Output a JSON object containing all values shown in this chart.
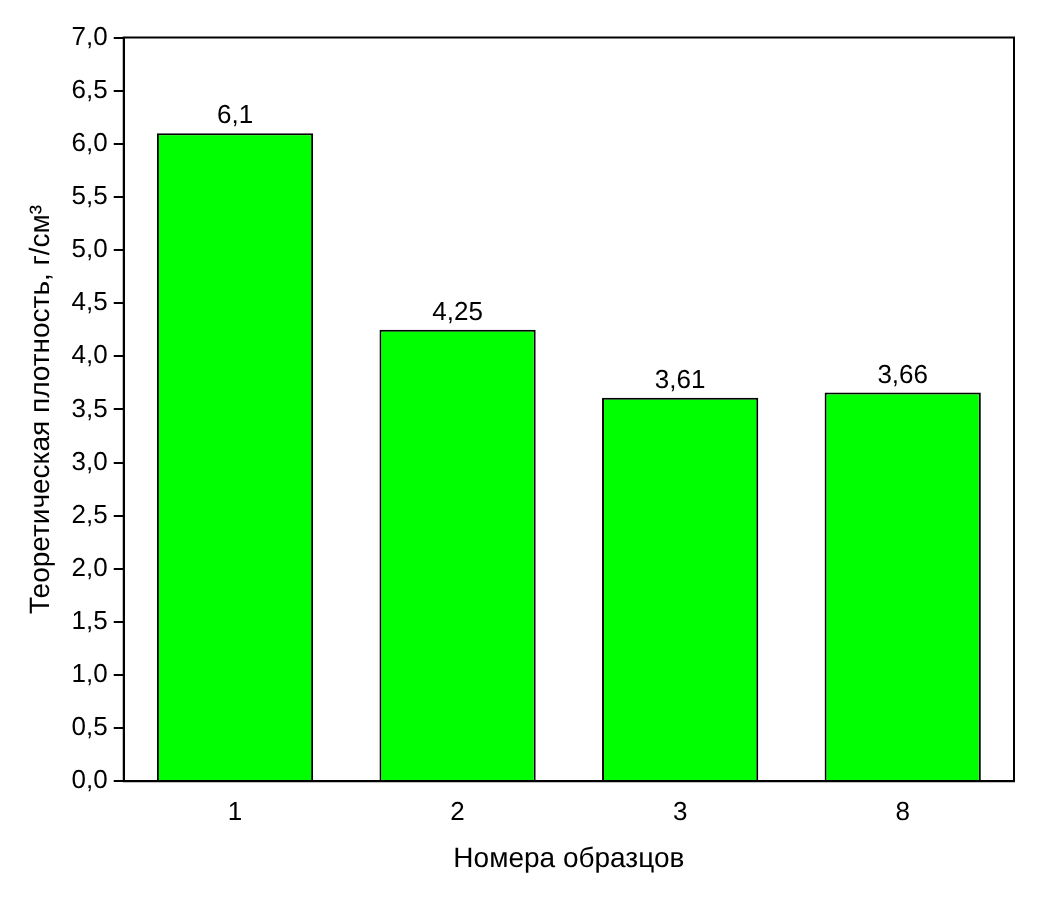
{
  "chart_data": {
    "type": "bar",
    "xlabel": "Номера образцов",
    "ylabel": "Теоретическая плотность, г/см³",
    "categories": [
      "1",
      "2",
      "3",
      "8"
    ],
    "values": [
      6.1,
      4.25,
      3.61,
      3.66
    ],
    "value_labels": [
      "6,1",
      "4,25",
      "3,61",
      "3,66"
    ],
    "color": "#00ff00",
    "ylim": [
      0,
      7
    ],
    "yticks": [
      {
        "value": 0,
        "label": "0,0"
      },
      {
        "value": 0.5,
        "label": "0,5"
      },
      {
        "value": 1,
        "label": "1,0"
      },
      {
        "value": 1.5,
        "label": "1,5"
      },
      {
        "value": 2,
        "label": "2,0"
      },
      {
        "value": 2.5,
        "label": "2,5"
      },
      {
        "value": 3,
        "label": "3,0"
      },
      {
        "value": 3.5,
        "label": "3,5"
      },
      {
        "value": 4,
        "label": "4,0"
      },
      {
        "value": 4.5,
        "label": "4,5"
      },
      {
        "value": 5,
        "label": "5,0"
      },
      {
        "value": 5.5,
        "label": "5,5"
      },
      {
        "value": 6,
        "label": "6,0"
      },
      {
        "value": 6.5,
        "label": "6,5"
      },
      {
        "value": 7,
        "label": "7,0"
      }
    ],
    "grid": false,
    "legend": false
  }
}
